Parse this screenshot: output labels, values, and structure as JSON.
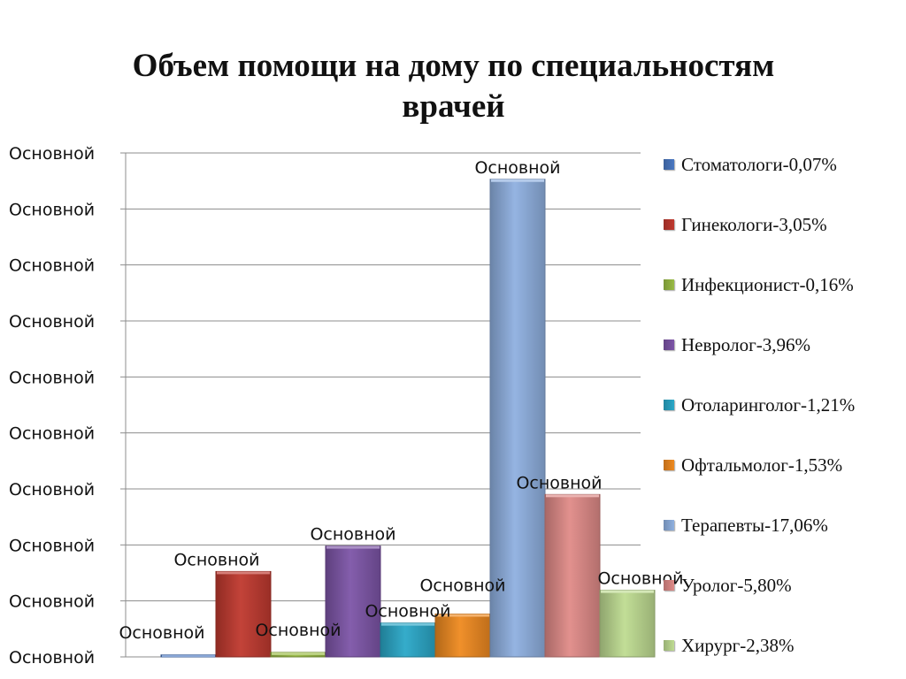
{
  "chart_data": {
    "type": "bar",
    "title": "Объем помощи на дому по специальностям врачей",
    "xlabel": "",
    "ylabel": "",
    "ylim": [
      0,
      18
    ],
    "grid": true,
    "legend_position": "right",
    "y_tick_labels": [
      "Основной",
      "Основной",
      "Основной",
      "Основной",
      "Основной",
      "Основной",
      "Основной",
      "Основной",
      "Основной",
      "Основной"
    ],
    "series": [
      {
        "name": "Стоматологи-0,07%",
        "value": 0.07,
        "data_label": "Основной",
        "color": "#4a78c2"
      },
      {
        "name": "Гинекологи-3,05%",
        "value": 3.05,
        "data_label": "Основной",
        "color": "#c0392f"
      },
      {
        "name": "Инфекционист-0,16%",
        "value": 0.16,
        "data_label": "Основной",
        "color": "#99bb44"
      },
      {
        "name": "Невролог-3,96%",
        "value": 3.96,
        "data_label": "Основной",
        "color": "#7d55a8"
      },
      {
        "name": "Отоларинголог-1,21%",
        "value": 1.21,
        "data_label": "Основной",
        "color": "#2aa8c8"
      },
      {
        "name": "Офтальмолог-1,53%",
        "value": 1.53,
        "data_label": "Основной",
        "color": "#ef8a20"
      },
      {
        "name": "Терапевты-17,06%",
        "value": 17.06,
        "data_label": "Основной",
        "color": "#8fb0e0"
      },
      {
        "name": "Уролог-5,80%",
        "value": 5.8,
        "data_label": "Основной",
        "color": "#e08b88"
      },
      {
        "name": "Хирург-2,38%",
        "value": 2.38,
        "data_label": "Основной",
        "color": "#bfdc92"
      }
    ]
  }
}
